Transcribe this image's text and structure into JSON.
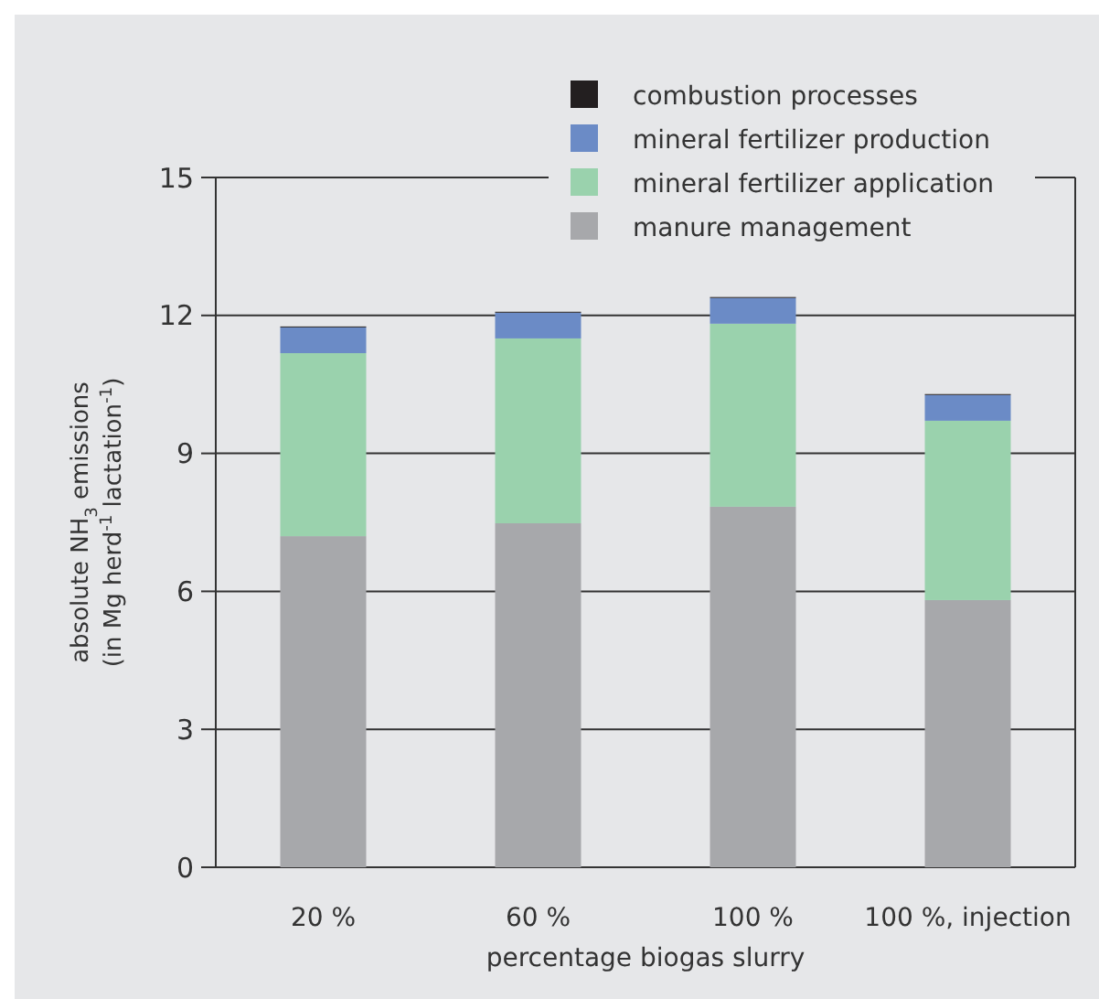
{
  "chart_data": {
    "type": "bar",
    "stacked": true,
    "categories": [
      "20 %",
      "60 %",
      "100 %",
      "100 %, injection"
    ],
    "series": [
      {
        "name": "manure management",
        "color": "#a7a8ab",
        "values": [
          7.2,
          7.48,
          7.84,
          5.81
        ]
      },
      {
        "name": "mineral fertilizer application",
        "color": "#9ad2ad",
        "values": [
          3.98,
          4.02,
          3.98,
          3.9
        ]
      },
      {
        "name": "mineral fertilizer production",
        "color": "#6b8bc6",
        "values": [
          0.56,
          0.56,
          0.56,
          0.56
        ]
      },
      {
        "name": "combustion processes",
        "color": "#231f20",
        "values": [
          0.02,
          0.02,
          0.02,
          0.02
        ]
      }
    ],
    "xlabel": "percentage biogas slurry",
    "ylabel": "absolute NH$_{3}$ emissions\n(in Mg herd$^{-1}$ lactation$^{-1}$)",
    "ylim": [
      0,
      15
    ],
    "yticks": [
      0,
      3,
      6,
      9,
      12,
      15
    ],
    "grid": "y",
    "legend": "top right"
  }
}
